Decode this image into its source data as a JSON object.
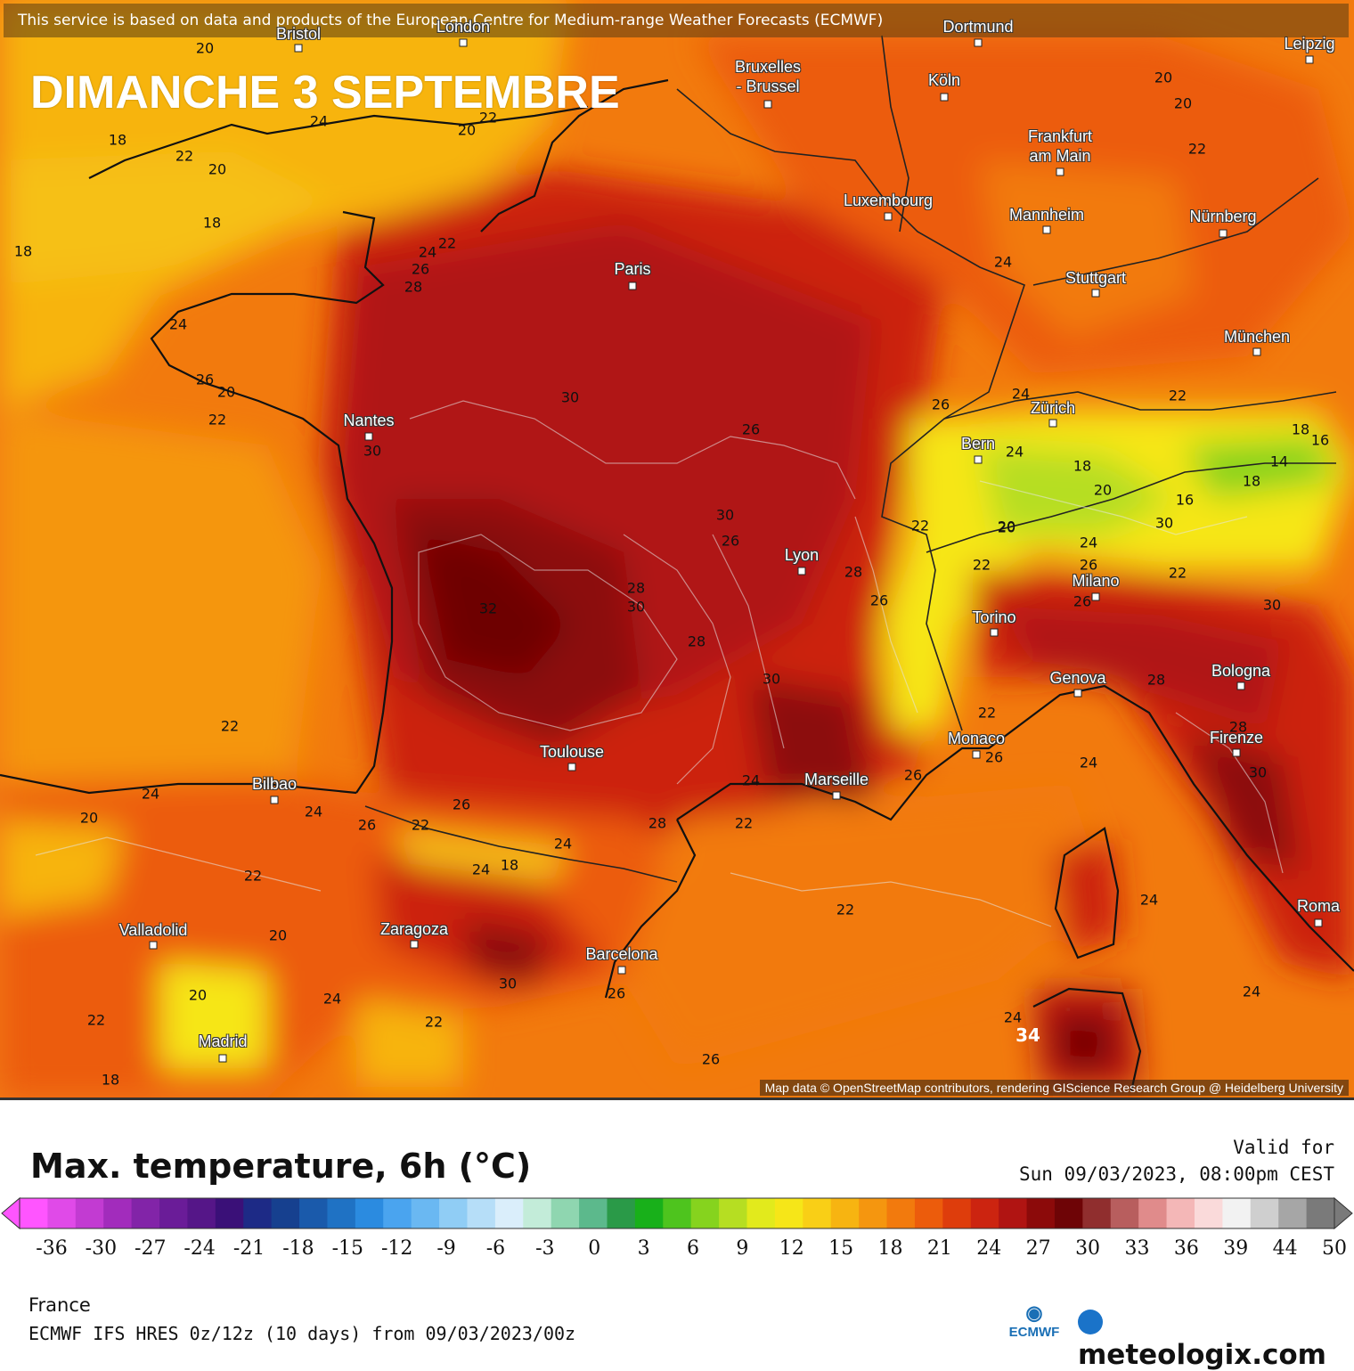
{
  "banner": "This service is based on data and products of the European Centre for Medium-range Weather Forecasts (ECMWF)",
  "headline": "DIMANCHE 3 SEPTEMBRE",
  "attribution": "Map data © OpenStreetMap contributors, rendering GIScience Research Group @ Heidelberg University",
  "map": {
    "cities": [
      {
        "name": "Bristol"
      },
      {
        "name": "London"
      },
      {
        "name": "Dortmund"
      },
      {
        "name": "Leipzig"
      },
      {
        "name": "Bruxelles\n- Brussel"
      },
      {
        "name": "Köln"
      },
      {
        "name": "Frankfurt\nam Main"
      },
      {
        "name": "Luxembourg"
      },
      {
        "name": "Mannheim"
      },
      {
        "name": "Nürnberg"
      },
      {
        "name": "Stuttgart"
      },
      {
        "name": "Paris"
      },
      {
        "name": "München"
      },
      {
        "name": "Zürich"
      },
      {
        "name": "Bern"
      },
      {
        "name": "Nantes"
      },
      {
        "name": "Lyon"
      },
      {
        "name": "Milano"
      },
      {
        "name": "Torino"
      },
      {
        "name": "Genova"
      },
      {
        "name": "Bologna"
      },
      {
        "name": "Monaco"
      },
      {
        "name": "Firenze"
      },
      {
        "name": "Toulouse"
      },
      {
        "name": "Marseille"
      },
      {
        "name": "Bilbao"
      },
      {
        "name": "Valladolid"
      },
      {
        "name": "Zaragoza"
      },
      {
        "name": "Barcelona"
      },
      {
        "name": "Roma"
      },
      {
        "name": "Madrid"
      }
    ],
    "isotherm_labels": [
      "20",
      "24",
      "20",
      "22",
      "18",
      "22",
      "20",
      "20",
      "22",
      "20",
      "18",
      "18",
      "24",
      "22",
      "26",
      "28",
      "24",
      "26",
      "20",
      "22",
      "30",
      "30",
      "32",
      "28",
      "30",
      "26",
      "26",
      "30",
      "28",
      "26",
      "28",
      "24",
      "26",
      "30",
      "22",
      "24",
      "18",
      "20",
      "22",
      "24",
      "22",
      "20",
      "18",
      "16",
      "14",
      "18",
      "16",
      "30",
      "22",
      "24",
      "26",
      "28",
      "26",
      "28",
      "30",
      "22",
      "26",
      "24",
      "30",
      "22",
      "20",
      "24",
      "22",
      "26",
      "24",
      "22",
      "26",
      "24",
      "18",
      "24",
      "22",
      "28",
      "20",
      "30",
      "26",
      "26",
      "22",
      "24",
      "24",
      "20",
      "22",
      "24",
      "20",
      "22",
      "18",
      "26",
      "24",
      "24",
      "34"
    ]
  },
  "legend": {
    "title": "Max. temperature, 6h (°C)",
    "valid_label": "Valid for",
    "valid_time": "Sun 09/03/2023, 08:00pm CEST",
    "ticks": [
      "-36",
      "-30",
      "-27",
      "-24",
      "-21",
      "-18",
      "-15",
      "-12",
      "-9",
      "-6",
      "-3",
      "0",
      "3",
      "6",
      "9",
      "12",
      "15",
      "18",
      "21",
      "24",
      "27",
      "30",
      "33",
      "36",
      "39",
      "44",
      "50"
    ],
    "colors": [
      "#ff55ff",
      "#e04ae8",
      "#c23bd2",
      "#a22cbc",
      "#8224a8",
      "#6a1c98",
      "#551688",
      "#3a1078",
      "#1d2a86",
      "#16408f",
      "#1a5aab",
      "#1f72c4",
      "#2b8be0",
      "#4aa4ef",
      "#6ab8f2",
      "#90cdf5",
      "#b6def8",
      "#daeefb",
      "#c3ecd9",
      "#8fd6b0",
      "#5cb98c",
      "#2a9a48",
      "#18b01a",
      "#4ec41e",
      "#86d31e",
      "#b6de22",
      "#e2ea1c",
      "#f6e618",
      "#f9cf16",
      "#f7b411",
      "#f5960f",
      "#f27a0d",
      "#ec5c0c",
      "#de3d0c",
      "#cc2410",
      "#b01412",
      "#8c0a0a",
      "#6e0406",
      "#902e2e",
      "#b85e5e",
      "#e08b8b",
      "#f4b7b7",
      "#fadada",
      "#f2f2f2",
      "#cfcfcf",
      "#a6a6a6",
      "#7a7a7a"
    ],
    "region": "France",
    "model": "ECMWF IFS HRES 0z/12z (10 days) from  09/03/2023/00z",
    "ecmwf_logo": "ECMWF",
    "brand": "meteologix.com"
  }
}
